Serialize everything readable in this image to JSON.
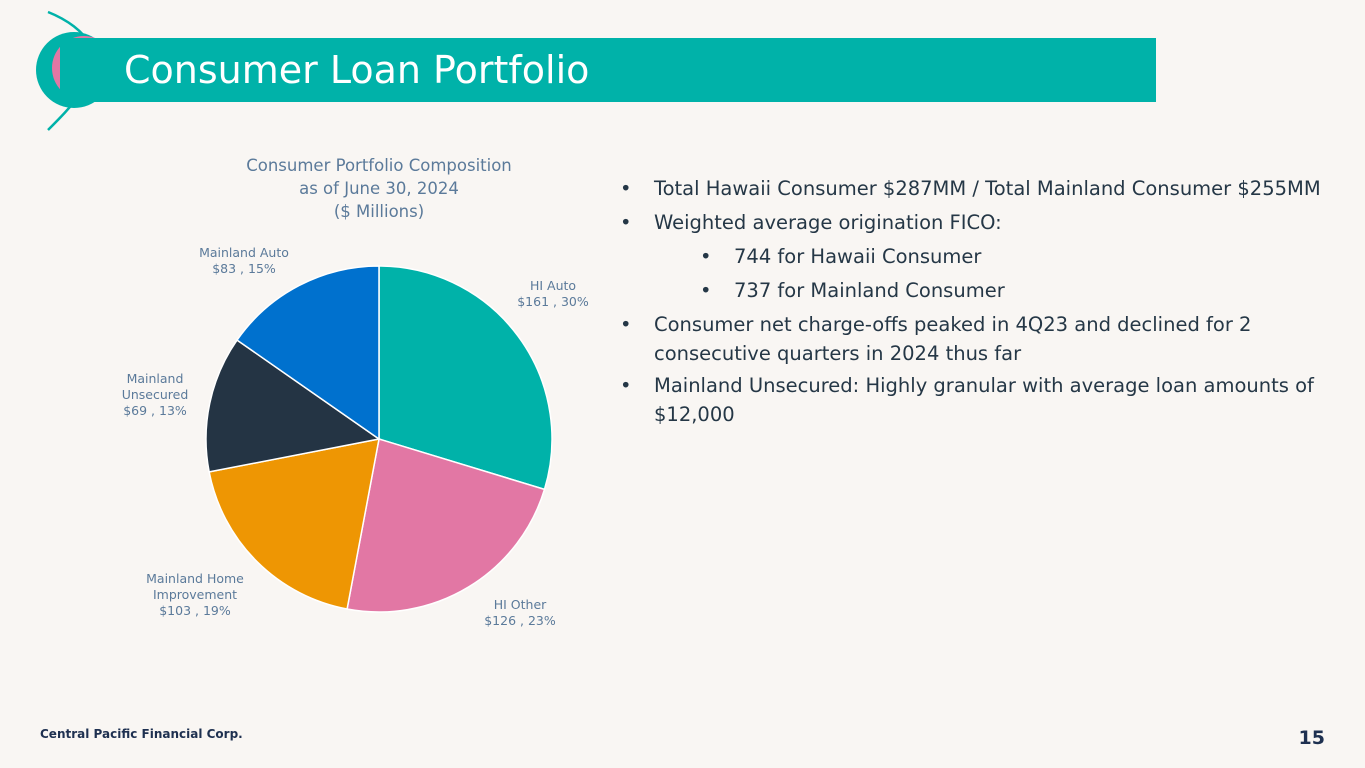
{
  "slide": {
    "title": "Consumer Loan Portfolio",
    "company": "Central Pacific Financial Corp.",
    "page_number": "15"
  },
  "colors": {
    "title_bar": "#00b2a9",
    "hi_auto": "#00b2a9",
    "hi_other": "#e277a4",
    "mainland_home_improvement": "#ee9603",
    "mainland_unsecured": "#243444",
    "mainland_auto": "#0071ce",
    "label_text": "#5b7a9a"
  },
  "bullets": [
    {
      "marker": "•",
      "text": "Total Hawaii Consumer $287MM / Total Mainland Consumer $255MM",
      "level": 1
    },
    {
      "marker": "•",
      "text": "Weighted average origination FICO:",
      "level": 1
    },
    {
      "marker": "•",
      "text": "744 for Hawaii Consumer",
      "level": 2
    },
    {
      "marker": "•",
      "text": "737 for Mainland Consumer",
      "level": 2
    },
    {
      "marker": "•",
      "text": "Consumer net charge-offs peaked in 4Q23 and declined for 2 consecutive quarters in 2024 thus far",
      "level": 1
    },
    {
      "marker": "•",
      "text": "Mainland Unsecured: Highly granular with average loan amounts of $12,000",
      "level": 1
    }
  ],
  "chart_data": {
    "type": "pie",
    "title_lines": [
      "Consumer Portfolio Composition",
      "as of June 30, 2024",
      "($ Millions)"
    ],
    "legend": "none",
    "slices": [
      {
        "label": "HI Auto",
        "value": 161,
        "percent": "30%",
        "label_lines": [
          "HI Auto",
          "$161 , 30%"
        ],
        "color": "#00b2a9"
      },
      {
        "label": "HI Other",
        "value": 126,
        "percent": "23%",
        "label_lines": [
          "HI Other",
          "$126 , 23%"
        ],
        "color": "#e277a4"
      },
      {
        "label": "Mainland Home Improvement",
        "value": 103,
        "percent": "19%",
        "label_lines": [
          "Mainland Home",
          "Improvement",
          "$103 , 19%"
        ],
        "color": "#ee9603"
      },
      {
        "label": "Mainland Unsecured",
        "value": 69,
        "percent": "13%",
        "label_lines": [
          "Mainland",
          "Unsecured",
          "$69 , 13%"
        ],
        "color": "#243444"
      },
      {
        "label": "Mainland Auto",
        "value": 83,
        "percent": "15%",
        "label_lines": [
          "Mainland Auto",
          "$83 , 15%"
        ],
        "color": "#0071ce"
      }
    ]
  }
}
